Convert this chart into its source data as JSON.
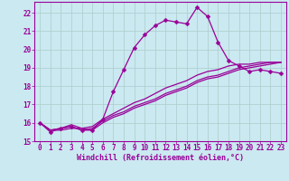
{
  "background_color": "#cbe9f0",
  "grid_color": "#aacccc",
  "line_color": "#990099",
  "marker_color": "#990099",
  "xlabel": "Windchill (Refroidissement éolien,°C)",
  "xlim": [
    -0.5,
    23.5
  ],
  "ylim": [
    15,
    22.6
  ],
  "yticks": [
    15,
    16,
    17,
    18,
    19,
    20,
    21,
    22
  ],
  "xticks": [
    0,
    1,
    2,
    3,
    4,
    5,
    6,
    7,
    8,
    9,
    10,
    11,
    12,
    13,
    14,
    15,
    16,
    17,
    18,
    19,
    20,
    21,
    22,
    23
  ],
  "series": [
    [
      16.0,
      15.5,
      15.7,
      15.8,
      15.6,
      15.6,
      16.2,
      17.7,
      18.9,
      20.1,
      20.8,
      21.3,
      21.6,
      21.5,
      21.4,
      22.3,
      21.8,
      20.4,
      19.4,
      19.1,
      18.8,
      18.9,
      18.8,
      18.7
    ],
    [
      16.0,
      15.6,
      15.6,
      15.7,
      15.7,
      15.6,
      16.0,
      16.3,
      16.5,
      16.8,
      17.0,
      17.2,
      17.5,
      17.7,
      17.9,
      18.2,
      18.4,
      18.5,
      18.7,
      18.9,
      19.0,
      19.1,
      19.2,
      19.3
    ],
    [
      16.0,
      15.6,
      15.7,
      15.8,
      15.6,
      15.7,
      16.1,
      16.4,
      16.6,
      16.9,
      17.1,
      17.3,
      17.6,
      17.8,
      18.0,
      18.3,
      18.5,
      18.6,
      18.8,
      19.0,
      19.1,
      19.2,
      19.3,
      19.3
    ],
    [
      16.0,
      15.6,
      15.7,
      15.9,
      15.7,
      15.8,
      16.2,
      16.5,
      16.8,
      17.1,
      17.3,
      17.6,
      17.9,
      18.1,
      18.3,
      18.6,
      18.8,
      18.9,
      19.1,
      19.2,
      19.2,
      19.3,
      19.3,
      19.3
    ]
  ],
  "tick_fontsize": 5.5,
  "xlabel_fontsize": 6.0,
  "marker_size": 2.5,
  "line_width": 0.9
}
